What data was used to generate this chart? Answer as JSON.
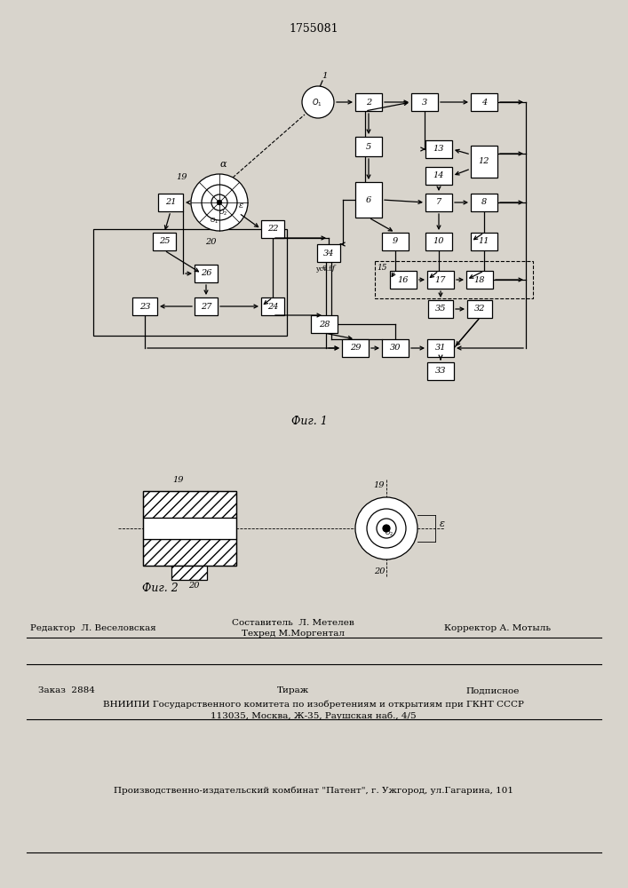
{
  "title": "1755081",
  "fig1_caption": "Фиг. 1",
  "fig2_caption": "Фиг. 2",
  "footer_editor": "Редактор  Л. Веселовская",
  "footer_composer": "Составитель  Л. Метелев",
  "footer_tech": "Техред М.Моргентал",
  "footer_corrector": "Корректор А. Мотыль",
  "footer_order": "Заказ  2884",
  "footer_tirazh": "Тираж",
  "footer_podpisnoe": "Подписное",
  "footer_vniipи": "ВНИИПИ Государственного комитета по изобретениям и открытиям при ГКНТ СССР",
  "footer_address": "113035, Москва, Ж-35, Раушская наб., 4/5",
  "footer_patent": "Производственно-издательский комбинат \"Патент\", г. Ужгород, ул.Гагарина, 101",
  "bg_color": "#d8d4cc"
}
